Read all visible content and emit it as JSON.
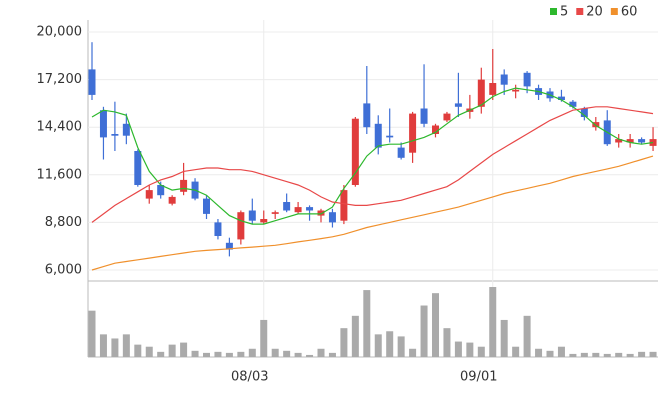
{
  "chart_data": {
    "type": "candlestick",
    "categories": [
      null,
      null,
      null,
      null,
      null,
      null,
      null,
      null,
      null,
      null,
      null,
      null,
      null,
      null,
      null,
      "08/03",
      null,
      null,
      null,
      null,
      null,
      null,
      null,
      null,
      null,
      null,
      null,
      null,
      null,
      null,
      null,
      null,
      null,
      null,
      null,
      "09/01",
      null,
      null,
      null,
      null,
      null,
      null,
      null,
      null,
      null,
      null,
      null,
      null,
      null,
      null
    ],
    "open": [
      17800,
      15400,
      14000,
      14600,
      13000,
      10200,
      11000,
      9900,
      10600,
      11200,
      10200,
      8800,
      7600,
      7800,
      9500,
      8800,
      9300,
      10000,
      9400,
      9700,
      9200,
      9400,
      8900,
      11000,
      15800,
      14600,
      13900,
      13200,
      12900,
      15500,
      14000,
      14800,
      15800,
      15300,
      15600,
      16300,
      17500,
      16500,
      17600,
      16700,
      16500,
      16200,
      15900,
      15500,
      14400,
      14800,
      13500,
      13500,
      13700,
      13300
    ],
    "high": [
      19400,
      15600,
      15900,
      15200,
      13100,
      11000,
      11200,
      10400,
      12300,
      11400,
      10400,
      9000,
      7900,
      9500,
      10200,
      9500,
      9500,
      10500,
      10000,
      9800,
      9600,
      9600,
      11000,
      15000,
      18000,
      15100,
      15500,
      13500,
      15300,
      18100,
      14600,
      15300,
      17600,
      16300,
      17900,
      19000,
      17800,
      16900,
      17700,
      16900,
      16700,
      16600,
      16000,
      15600,
      15000,
      15400,
      14000,
      14000,
      13800,
      14400
    ],
    "low": [
      16000,
      12500,
      13000,
      13400,
      10900,
      9900,
      10200,
      9800,
      10400,
      10100,
      9000,
      7800,
      6800,
      7500,
      8700,
      8700,
      9000,
      9400,
      9300,
      8900,
      8800,
      8500,
      8700,
      10900,
      14000,
      12800,
      13500,
      12500,
      12300,
      14400,
      13800,
      14700,
      15000,
      14900,
      15200,
      16000,
      16300,
      16100,
      16400,
      16000,
      15900,
      15900,
      15500,
      14800,
      14200,
      13300,
      13200,
      13200,
      13400,
      13000
    ],
    "close": [
      16300,
      13800,
      13900,
      13900,
      11000,
      10700,
      10400,
      10300,
      11300,
      10200,
      9300,
      8000,
      7200,
      9400,
      8900,
      9000,
      9400,
      9500,
      9700,
      9500,
      9500,
      8800,
      10700,
      14900,
      14400,
      13200,
      13800,
      12600,
      15200,
      14600,
      14500,
      15200,
      15600,
      15500,
      17200,
      17000,
      16900,
      16600,
      16800,
      16300,
      16100,
      16000,
      15600,
      15000,
      14700,
      13400,
      13700,
      13700,
      13500,
      13700
    ],
    "up_color": "#e03c3c",
    "down_color": "#3f6fd6",
    "ma_series": [
      {
        "name": "5",
        "color": "#2db82d",
        "values": [
          15000,
          15400,
          15300,
          15100,
          13200,
          11800,
          11000,
          10700,
          10800,
          10700,
          10400,
          9800,
          9200,
          8900,
          8700,
          8700,
          8900,
          9100,
          9300,
          9300,
          9300,
          9700,
          10800,
          11700,
          12700,
          13300,
          13400,
          13400,
          13600,
          13800,
          14100,
          14600,
          15100,
          15400,
          15700,
          16200,
          16500,
          16700,
          16600,
          16500,
          16300,
          16000,
          15600,
          15100,
          14500,
          14100,
          13700,
          13500,
          13400,
          13500
        ]
      },
      {
        "name": "20",
        "color": "#e84848",
        "values": [
          8800,
          9300,
          9800,
          10200,
          10600,
          11000,
          11300,
          11500,
          11800,
          11900,
          12000,
          12000,
          11900,
          11900,
          11800,
          11600,
          11400,
          11200,
          11000,
          10700,
          10300,
          10000,
          9900,
          9800,
          9800,
          9900,
          10000,
          10100,
          10300,
          10500,
          10700,
          10900,
          11300,
          11800,
          12300,
          12800,
          13200,
          13600,
          14000,
          14400,
          14800,
          15100,
          15400,
          15500,
          15600,
          15600,
          15500,
          15400,
          15300,
          15200
        ]
      },
      {
        "name": "60",
        "color": "#f0902c",
        "values": [
          6000,
          6200,
          6400,
          6500,
          6600,
          6700,
          6800,
          6900,
          7000,
          7100,
          7150,
          7200,
          7250,
          7300,
          7350,
          7400,
          7450,
          7550,
          7650,
          7750,
          7850,
          7950,
          8100,
          8300,
          8500,
          8650,
          8800,
          8950,
          9100,
          9250,
          9400,
          9550,
          9700,
          9900,
          10100,
          10300,
          10500,
          10650,
          10800,
          10950,
          11100,
          11300,
          11500,
          11650,
          11800,
          11950,
          12100,
          12300,
          12500,
          12700
        ]
      }
    ],
    "volume": [
      45,
      22,
      18,
      22,
      12,
      10,
      5,
      12,
      14,
      6,
      4,
      5,
      4,
      5,
      8,
      36,
      8,
      6,
      4,
      2,
      8,
      4,
      28,
      40,
      65,
      22,
      25,
      20,
      8,
      50,
      62,
      28,
      15,
      14,
      10,
      68,
      36,
      10,
      40,
      8,
      6,
      10,
      3,
      4,
      4,
      3,
      4,
      3,
      5,
      5
    ],
    "volume_color": "#aaaaaa",
    "ylim": [
      6000,
      20000
    ],
    "yticks": [
      {
        "value": 6000,
        "label": "6,000"
      },
      {
        "value": 8800,
        "label": "8,800"
      },
      {
        "value": 11600,
        "label": "11,600"
      },
      {
        "value": 14400,
        "label": "14,400"
      },
      {
        "value": 17200,
        "label": "17,200"
      },
      {
        "value": 20000,
        "label": "20,000"
      }
    ],
    "grid": true
  }
}
